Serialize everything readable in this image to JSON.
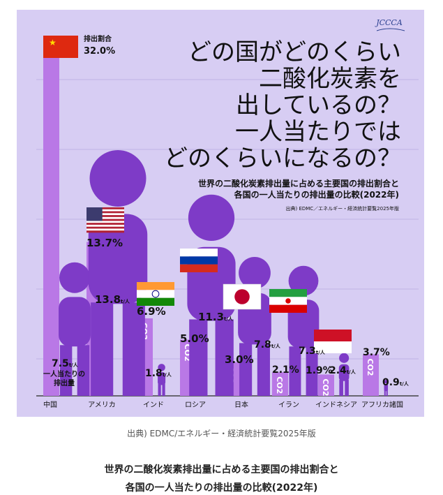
{
  "logo_text": "JCCCA",
  "headline": {
    "lines": [
      "どの国がどのくらい",
      "二酸化炭素を",
      "出しているの？",
      "一人当たりでは",
      "どのくらいになるの？"
    ]
  },
  "subtitle_lines": [
    "世界の二酸化炭素排出量に占める主要国の排出割合と",
    "各国の一人当たりの排出量の比較(2022年)"
  ],
  "source_inner": "出典) EDMC／エネルギー・経済統計要覧2025年版",
  "share_label": "排出割合",
  "per_capita_label_lines": [
    "一人当たりの",
    "排出量"
  ],
  "co2_label": "CO2",
  "per_capita_unit": "t/人",
  "colors": {
    "share_bar": "#b978e6",
    "person": "#7e3bc7",
    "background": "#d7cdf3"
  },
  "chart_data": {
    "type": "bar",
    "categories": [
      "中国",
      "アメリカ",
      "インド",
      "ロシア",
      "日本",
      "イラン",
      "インドネシア",
      "アフリカ諸国"
    ],
    "series": [
      {
        "name": "排出割合",
        "unit": "%",
        "values": [
          32.0,
          13.7,
          6.9,
          5.0,
          3.0,
          2.1,
          1.9,
          3.7
        ]
      },
      {
        "name": "一人当たりの排出量",
        "unit": "t/人",
        "values": [
          7.5,
          13.8,
          1.8,
          11.3,
          7.8,
          7.3,
          2.4,
          0.9
        ]
      }
    ],
    "share_labels": [
      "32.0%",
      "13.7%",
      "6.9%",
      "5.0%",
      "3.0%",
      "2.1%",
      "1.9%",
      "3.7%"
    ],
    "per_capita_labels": [
      "7.5",
      "13.8",
      "1.8",
      "11.3",
      "7.8",
      "7.3",
      "2.4",
      "0.9"
    ],
    "flags": [
      "china-flag",
      "usa-flag",
      "india-flag",
      "russia-flag",
      "japan-flag",
      "iran-flag",
      "indonesia-flag",
      null
    ]
  },
  "caption": {
    "source": "出典) EDMC/エネルギー・経済統計要覧2025年版",
    "title_line1": "世界の二酸化炭素排出量に占める主要国の排出割合と",
    "title_line2": "各国の一人当たりの排出量の比較(2022年)"
  }
}
